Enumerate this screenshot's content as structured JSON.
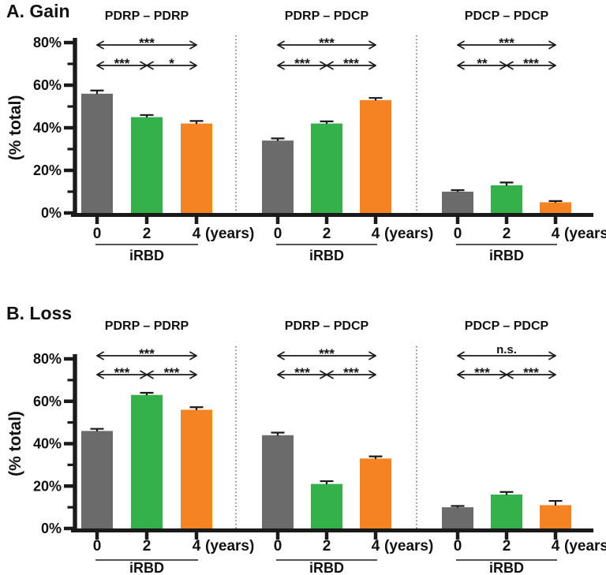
{
  "figure": {
    "name": "Gain/Loss bar figure",
    "accent_colors": {
      "gray": "#6b6b6b",
      "green": "#35b14b",
      "orange": "#f58322",
      "axis": "#1a1a1a"
    }
  },
  "chart_data": [
    {
      "type": "bar",
      "title": "A. Gain",
      "ylabel": "(% total)",
      "ylim": [
        0,
        80
      ],
      "y_ticks": [
        0,
        20,
        40,
        60,
        80
      ],
      "y_tick_suffix": "%",
      "y_minor_ticks": [
        10,
        30,
        50,
        70
      ],
      "categories": [
        "0",
        "2",
        "4"
      ],
      "x_unit_label": "(years)",
      "cohort_label": "iRBD",
      "bar_colors": [
        "#6b6b6b",
        "#35b14b",
        "#f58322"
      ],
      "legend_position": "none",
      "grid": false,
      "groups": [
        {
          "title": "PDRP – PDRP",
          "values": [
            56,
            45,
            42
          ],
          "errors": [
            1.5,
            1.0,
            1.2
          ],
          "sig_overall": "***",
          "sig_left": "***",
          "sig_right": "*"
        },
        {
          "title": "PDRP – PDCP",
          "values": [
            34,
            42,
            53
          ],
          "errors": [
            1.0,
            1.0,
            1.0
          ],
          "sig_overall": "***",
          "sig_left": "***",
          "sig_right": "***"
        },
        {
          "title": "PDCP – PDCP",
          "values": [
            10,
            13,
            5
          ],
          "errors": [
            0.7,
            1.3,
            0.6
          ],
          "sig_overall": "***",
          "sig_left": "**",
          "sig_right": "***"
        }
      ]
    },
    {
      "type": "bar",
      "title": "B. Loss",
      "ylabel": "(% total)",
      "ylim": [
        0,
        80
      ],
      "y_ticks": [
        0,
        20,
        40,
        60,
        80
      ],
      "y_tick_suffix": "%",
      "y_minor_ticks": [
        10,
        30,
        50,
        70
      ],
      "categories": [
        "0",
        "2",
        "4"
      ],
      "x_unit_label": "(years)",
      "cohort_label": "iRBD",
      "bar_colors": [
        "#6b6b6b",
        "#35b14b",
        "#f58322"
      ],
      "legend_position": "none",
      "grid": false,
      "groups": [
        {
          "title": "PDRP – PDRP",
          "values": [
            46,
            63,
            56
          ],
          "errors": [
            1.0,
            1.0,
            1.2
          ],
          "sig_overall": "***",
          "sig_left": "***",
          "sig_right": "***"
        },
        {
          "title": "PDRP – PDCP",
          "values": [
            44,
            21,
            33
          ],
          "errors": [
            1.2,
            1.3,
            1.0
          ],
          "sig_overall": "***",
          "sig_left": "***",
          "sig_right": "***"
        },
        {
          "title": "PDCP – PDCP",
          "values": [
            10,
            16,
            11
          ],
          "errors": [
            0.6,
            1.2,
            2.0
          ],
          "sig_overall": "n.s.",
          "sig_left": "***",
          "sig_right": "***"
        }
      ]
    }
  ]
}
